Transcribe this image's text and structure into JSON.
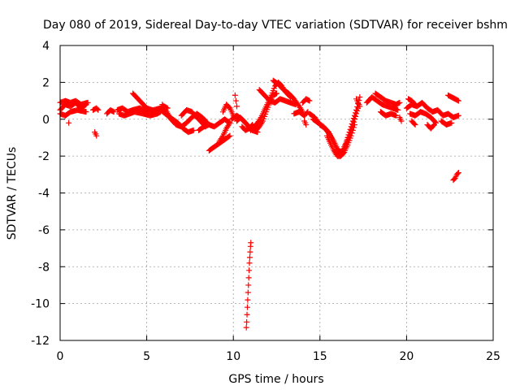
{
  "chart_data": {
    "type": "scatter",
    "title": "Day 080 of 2019, Sidereal Day-to-day VTEC variation (SDTVAR) for receiver bshm",
    "xlabel": "GPS time / hours",
    "ylabel": "SDTVAR / TECUs",
    "xlim": [
      0,
      25
    ],
    "ylim": [
      -12,
      4
    ],
    "xticks": [
      0,
      5,
      10,
      15,
      20,
      25
    ],
    "yticks": [
      -12,
      -10,
      -8,
      -6,
      -4,
      -2,
      0,
      2,
      4
    ],
    "xtick_labels": [
      "0",
      "5",
      "10",
      "15",
      "20",
      "25"
    ],
    "ytick_labels": [
      "-12",
      "-10",
      "-8",
      "-6",
      "-4",
      "-2",
      "0",
      "2",
      "4"
    ],
    "grid": true,
    "marker": "plus",
    "series_color": "#ff0000",
    "segments": [
      {
        "x": [
          0.0,
          0.3,
          0.6,
          0.9,
          1.2,
          1.5
        ],
        "y": [
          0.5,
          0.8,
          0.7,
          0.9,
          0.6,
          0.8
        ]
      },
      {
        "x": [
          0.0,
          0.3,
          0.6,
          0.9,
          1.2,
          1.6
        ],
        "y": [
          0.9,
          1.0,
          0.9,
          1.0,
          0.8,
          0.9
        ]
      },
      {
        "x": [
          0.0,
          0.3,
          0.6,
          1.0,
          1.5
        ],
        "y": [
          0.3,
          0.2,
          0.4,
          0.5,
          0.4
        ]
      },
      {
        "x": [
          0.5
        ],
        "y": [
          -0.2
        ]
      },
      {
        "x": [
          1.9,
          2.1,
          2.2
        ],
        "y": [
          0.5,
          0.6,
          0.5
        ]
      },
      {
        "x": [
          2.0,
          2.1
        ],
        "y": [
          -0.7,
          -0.9
        ]
      },
      {
        "x": [
          2.7,
          2.9,
          3.1
        ],
        "y": [
          0.3,
          0.5,
          0.4
        ]
      },
      {
        "x": [
          3.3,
          3.6,
          3.9,
          4.2,
          4.6,
          5.0,
          5.4,
          5.8,
          6.0,
          6.2
        ],
        "y": [
          0.5,
          0.6,
          0.4,
          0.5,
          0.6,
          0.4,
          0.5,
          0.6,
          0.7,
          0.6
        ]
      },
      {
        "x": [
          3.4,
          3.7,
          4.0,
          4.3,
          4.8,
          5.2,
          5.6,
          5.8
        ],
        "y": [
          0.3,
          0.2,
          0.3,
          0.4,
          0.3,
          0.2,
          0.3,
          0.4
        ]
      },
      {
        "x": [
          4.2,
          4.5,
          4.8,
          5.0,
          5.3,
          5.6
        ],
        "y": [
          1.4,
          1.1,
          0.8,
          0.6,
          0.5,
          0.4
        ]
      },
      {
        "x": [
          5.9,
          6.1,
          6.4,
          6.7,
          7.0,
          7.3,
          7.6,
          7.9,
          8.2,
          8.5
        ],
        "y": [
          0.8,
          0.5,
          0.0,
          -0.3,
          -0.4,
          -0.2,
          0.1,
          0.3,
          0.1,
          -0.2
        ]
      },
      {
        "x": [
          5.8,
          6.2,
          6.5,
          6.8,
          7.1,
          7.4,
          7.7
        ],
        "y": [
          0.5,
          0.2,
          0.0,
          -0.2,
          -0.5,
          -0.7,
          -0.6
        ]
      },
      {
        "x": [
          7.0,
          7.3,
          7.6,
          7.8,
          8.1,
          8.4
        ],
        "y": [
          0.2,
          0.5,
          0.4,
          0.2,
          -0.1,
          -0.4
        ]
      },
      {
        "x": [
          8.0,
          8.3,
          8.6,
          8.9,
          9.2,
          9.5,
          9.8
        ],
        "y": [
          -0.6,
          -0.4,
          -0.3,
          -0.4,
          -0.2,
          0.0,
          -0.2
        ]
      },
      {
        "x": [
          8.6,
          8.9,
          9.2,
          9.5,
          9.8
        ],
        "y": [
          -1.7,
          -1.5,
          -1.3,
          -1.1,
          -0.9
        ]
      },
      {
        "x": [
          9.2,
          9.4,
          9.6,
          9.8
        ],
        "y": [
          -1.2,
          -0.9,
          -0.5,
          -0.2
        ]
      },
      {
        "x": [
          9.4,
          9.6,
          9.8,
          10.0
        ],
        "y": [
          0.4,
          0.8,
          0.6,
          0.2
        ]
      },
      {
        "x": [
          9.9,
          10.2,
          10.5,
          10.8,
          11.1,
          11.4
        ],
        "y": [
          0.0,
          0.2,
          0.0,
          -0.3,
          -0.6,
          -0.7
        ]
      },
      {
        "x": [
          10.1,
          10.2
        ],
        "y": [
          1.3,
          0.7
        ]
      },
      {
        "x": [
          10.2,
          10.4,
          10.6,
          10.8,
          11.0,
          11.2,
          11.4,
          11.6,
          11.8,
          12.0,
          12.2,
          12.4,
          12.6,
          12.8,
          13.0,
          13.3
        ],
        "y": [
          -0.1,
          0.1,
          -0.1,
          -0.3,
          -0.6,
          -0.4,
          -0.2,
          0.1,
          0.5,
          0.9,
          1.3,
          1.8,
          2.0,
          1.8,
          1.5,
          1.2
        ]
      },
      {
        "x": [
          10.5,
          10.7,
          10.9,
          11.1,
          11.3,
          11.5,
          11.7,
          11.9,
          12.1,
          12.3,
          12.5
        ],
        "y": [
          -0.4,
          -0.6,
          -0.5,
          -0.3,
          -0.6,
          -0.4,
          -0.1,
          0.4,
          0.9,
          1.3,
          1.4
        ]
      },
      {
        "x": [
          11.5,
          11.8,
          12.1,
          12.4,
          12.7,
          13.0,
          13.3,
          13.6
        ],
        "y": [
          1.6,
          1.3,
          1.0,
          0.9,
          1.1,
          1.0,
          0.9,
          0.8
        ]
      },
      {
        "x": [
          12.3,
          12.6,
          12.9,
          13.2,
          13.5,
          13.8,
          14.0
        ],
        "y": [
          2.1,
          1.9,
          1.6,
          1.4,
          1.1,
          0.7,
          0.4
        ]
      },
      {
        "x": [
          13.5,
          13.8,
          14.1,
          14.3
        ],
        "y": [
          0.3,
          0.4,
          0.2,
          0.4
        ]
      },
      {
        "x": [
          14.0,
          14.2,
          14.4
        ],
        "y": [
          0.9,
          1.1,
          1.0
        ]
      },
      {
        "x": [
          14.1,
          14.2
        ],
        "y": [
          -0.1,
          -0.3
        ]
      },
      {
        "x": [
          14.4,
          14.7,
          15.0,
          15.3,
          15.6,
          15.9,
          16.1,
          16.3,
          16.5,
          16.7,
          16.9,
          17.1,
          17.3
        ],
        "y": [
          0.3,
          0.1,
          -0.3,
          -0.5,
          -0.9,
          -1.5,
          -1.9,
          -1.7,
          -1.3,
          -0.7,
          -0.1,
          0.5,
          1.2
        ]
      },
      {
        "x": [
          14.6,
          14.9,
          15.2,
          15.5,
          15.8,
          16.0,
          16.2,
          16.4,
          16.6,
          16.8,
          17.0,
          17.2
        ],
        "y": [
          0.0,
          -0.2,
          -0.4,
          -0.7,
          -1.2,
          -1.6,
          -1.8,
          -1.6,
          -1.1,
          -0.6,
          0.0,
          0.6
        ]
      },
      {
        "x": [
          15.4,
          15.6,
          15.8,
          16.0,
          16.2,
          16.4,
          16.6,
          16.8,
          17.0
        ],
        "y": [
          -0.9,
          -1.3,
          -1.7,
          -2.0,
          -2.0,
          -1.8,
          -1.4,
          -0.9,
          -0.3
        ]
      },
      {
        "x": [
          17.1,
          17.2,
          17.3
        ],
        "y": [
          1.1,
          0.9,
          0.7
        ]
      },
      {
        "x": [
          17.7,
          18.0,
          18.3,
          18.6,
          18.9,
          19.2,
          19.5
        ],
        "y": [
          0.9,
          1.2,
          1.0,
          0.8,
          0.7,
          0.6,
          0.5
        ]
      },
      {
        "x": [
          18.2,
          18.5,
          18.8,
          19.1,
          19.4,
          19.6
        ],
        "y": [
          1.4,
          1.2,
          1.0,
          0.9,
          0.8,
          0.9
        ]
      },
      {
        "x": [
          18.5,
          18.8,
          19.1,
          19.4
        ],
        "y": [
          0.4,
          0.2,
          0.3,
          0.2
        ]
      },
      {
        "x": [
          19.6,
          19.7
        ],
        "y": [
          0.1,
          -0.1
        ]
      },
      {
        "x": [
          20.1,
          20.3,
          20.5
        ],
        "y": [
          1.1,
          1.0,
          0.8
        ]
      },
      {
        "x": [
          20.0,
          20.3,
          20.6,
          20.9,
          21.2,
          21.5,
          21.8,
          22.1,
          22.4,
          22.7,
          23.0
        ],
        "y": [
          0.6,
          0.8,
          0.7,
          0.9,
          0.6,
          0.4,
          0.5,
          0.2,
          0.3,
          0.1,
          0.2
        ]
      },
      {
        "x": [
          20.2,
          20.5,
          20.8,
          21.1,
          21.4,
          21.7
        ],
        "y": [
          0.3,
          0.2,
          0.4,
          0.3,
          0.1,
          -0.2
        ]
      },
      {
        "x": [
          20.3,
          20.5
        ],
        "y": [
          -0.1,
          -0.3
        ]
      },
      {
        "x": [
          21.2,
          21.4,
          21.6
        ],
        "y": [
          -0.3,
          -0.5,
          -0.3
        ]
      },
      {
        "x": [
          22.0,
          22.3,
          22.6
        ],
        "y": [
          -0.1,
          -0.3,
          -0.2
        ]
      },
      {
        "x": [
          22.4,
          22.6,
          22.8,
          23.0
        ],
        "y": [
          1.3,
          1.2,
          1.1,
          1.0
        ]
      },
      {
        "x": [
          22.7,
          22.8,
          22.9,
          23.0
        ],
        "y": [
          -3.3,
          -3.2,
          -3.0,
          -2.9
        ]
      },
      {
        "x": [
          10.75,
          10.77,
          10.79,
          10.81,
          10.83,
          10.85,
          10.87,
          10.89,
          10.91,
          10.93,
          10.95,
          10.97,
          10.99,
          11.01
        ],
        "y": [
          -11.3,
          -11.0,
          -10.6,
          -10.2,
          -9.8,
          -9.4,
          -9.0,
          -8.6,
          -8.2,
          -7.8,
          -7.5,
          -7.2,
          -6.9,
          -6.7
        ]
      }
    ]
  }
}
